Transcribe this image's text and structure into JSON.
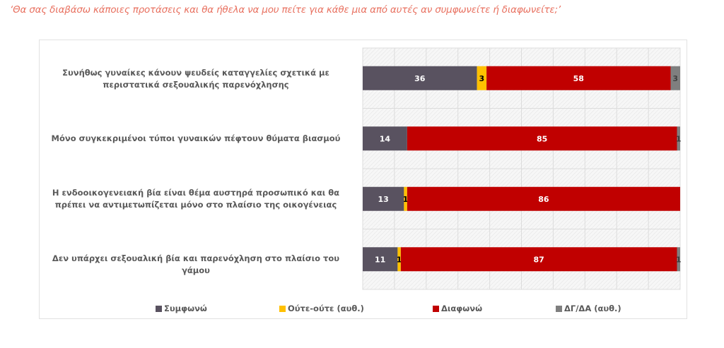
{
  "title": "‘Θα σας διαβάσω κάποιες προτάσεις και θα ήθελα να μου πείτε για κάθε μια από αυτές αν συμφωνείτε ή διαφωνείτε;’",
  "chart_data": {
    "type": "bar",
    "orientation": "horizontal",
    "stacked": true,
    "title": "‘Θα σας διαβάσω κάποιες προτάσεις και θα ήθελα να μου πείτε για κάθε μια από αυτές αν συμφωνείτε ή διαφωνείτε;’",
    "categories": [
      "Συνήθως γυναίκες κάνουν ψευδείς καταγγελίες σχετικά με περιστατικά σεξουαλικής παρενόχλησης",
      "Μόνο συγκεκριμένοι τύποι γυναικών πέφτουν θύματα βιασμού",
      "Η ενδοοικογενειακή βία είναι θέμα αυστηρά προσωπικό και θα πρέπει να αντιμετωπίζεται μόνο στο πλαίσιο της οικογένειας",
      "Δεν υπάρχει σεξουαλική βία και παρενόχληση στο πλαίσιο του γάμου"
    ],
    "series": [
      {
        "name": "Συμφωνώ",
        "color": "#595260",
        "label_color": "#ffffff",
        "values": [
          36,
          14,
          13,
          11
        ]
      },
      {
        "name": "Ούτε-ούτε (αυθ.)",
        "color": "#ffc000",
        "label_color": "#000000",
        "values": [
          3,
          0,
          1,
          1
        ]
      },
      {
        "name": "Διαφωνώ",
        "color": "#c00000",
        "label_color": "#ffffff",
        "values": [
          58,
          85,
          86,
          87
        ]
      },
      {
        "name": "ΔΓ/ΔΑ (αυθ.)",
        "color": "#7f7f7f",
        "label_color": "#404040",
        "values": [
          3,
          1,
          0,
          1
        ]
      }
    ],
    "data_labels": [
      [
        "36",
        "3",
        "58",
        "3"
      ],
      [
        "14",
        "",
        "85",
        "1"
      ],
      [
        "13",
        "1",
        "86",
        ""
      ],
      [
        "11",
        "1",
        "87",
        "1"
      ]
    ],
    "xlim": [
      0,
      100
    ],
    "grid": true,
    "legend": "bottom",
    "xlabel": "",
    "ylabel": ""
  }
}
